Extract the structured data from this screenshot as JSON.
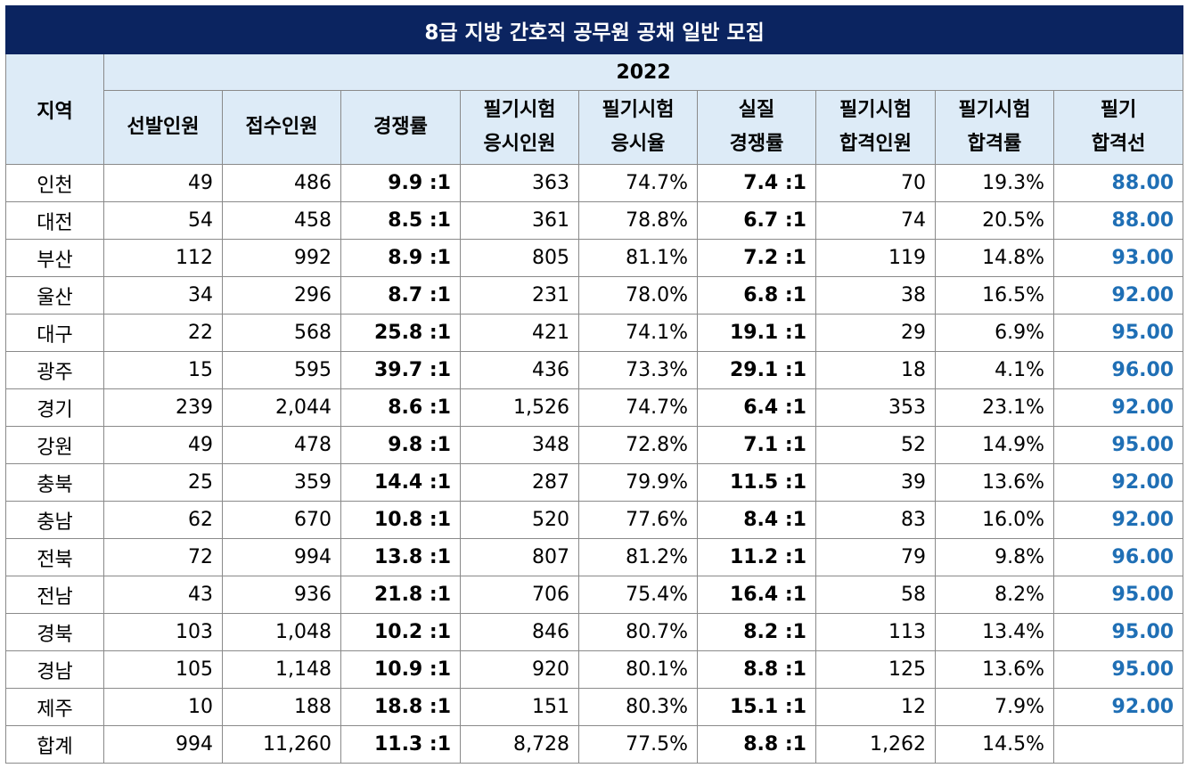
{
  "title": "8급 지방 간호직 공무원 공채 일반 모집",
  "region_header": "지역",
  "year": "2022",
  "columns": [
    "선발인원",
    "접수인원",
    "경쟁률",
    "필기시험\n응시인원",
    "필기시험\n응시율",
    "실질\n경쟁률",
    "필기시험\n합격인원",
    "필기시험\n합격률",
    "필기\n합격선"
  ],
  "rows": [
    {
      "region": "인천",
      "cells": [
        "49",
        "486",
        "9.9 :1",
        "363",
        "74.7%",
        "7.4 :1",
        "70",
        "19.3%",
        "88.00"
      ]
    },
    {
      "region": "대전",
      "cells": [
        "54",
        "458",
        "8.5 :1",
        "361",
        "78.8%",
        "6.7 :1",
        "74",
        "20.5%",
        "88.00"
      ]
    },
    {
      "region": "부산",
      "cells": [
        "112",
        "992",
        "8.9 :1",
        "805",
        "81.1%",
        "7.2 :1",
        "119",
        "14.8%",
        "93.00"
      ]
    },
    {
      "region": "울산",
      "cells": [
        "34",
        "296",
        "8.7 :1",
        "231",
        "78.0%",
        "6.8 :1",
        "38",
        "16.5%",
        "92.00"
      ]
    },
    {
      "region": "대구",
      "cells": [
        "22",
        "568",
        "25.8 :1",
        "421",
        "74.1%",
        "19.1 :1",
        "29",
        "6.9%",
        "95.00"
      ]
    },
    {
      "region": "광주",
      "cells": [
        "15",
        "595",
        "39.7 :1",
        "436",
        "73.3%",
        "29.1 :1",
        "18",
        "4.1%",
        "96.00"
      ]
    },
    {
      "region": "경기",
      "cells": [
        "239",
        "2,044",
        "8.6 :1",
        "1,526",
        "74.7%",
        "6.4 :1",
        "353",
        "23.1%",
        "92.00"
      ]
    },
    {
      "region": "강원",
      "cells": [
        "49",
        "478",
        "9.8 :1",
        "348",
        "72.8%",
        "7.1 :1",
        "52",
        "14.9%",
        "95.00"
      ]
    },
    {
      "region": "충북",
      "cells": [
        "25",
        "359",
        "14.4 :1",
        "287",
        "79.9%",
        "11.5 :1",
        "39",
        "13.6%",
        "92.00"
      ]
    },
    {
      "region": "충남",
      "cells": [
        "62",
        "670",
        "10.8 :1",
        "520",
        "77.6%",
        "8.4 :1",
        "83",
        "16.0%",
        "92.00"
      ]
    },
    {
      "region": "전북",
      "cells": [
        "72",
        "994",
        "13.8 :1",
        "807",
        "81.2%",
        "11.2 :1",
        "79",
        "9.8%",
        "96.00"
      ]
    },
    {
      "region": "전남",
      "cells": [
        "43",
        "936",
        "21.8 :1",
        "706",
        "75.4%",
        "16.4 :1",
        "58",
        "8.2%",
        "95.00"
      ]
    },
    {
      "region": "경북",
      "cells": [
        "103",
        "1,048",
        "10.2 :1",
        "846",
        "80.7%",
        "8.2 :1",
        "113",
        "13.4%",
        "95.00"
      ]
    },
    {
      "region": "경남",
      "cells": [
        "105",
        "1,148",
        "10.9 :1",
        "920",
        "80.1%",
        "8.8 :1",
        "125",
        "13.6%",
        "95.00"
      ]
    },
    {
      "region": "제주",
      "cells": [
        "10",
        "188",
        "18.8 :1",
        "151",
        "80.3%",
        "15.1 :1",
        "12",
        "7.9%",
        "92.00"
      ]
    },
    {
      "region": "합계",
      "cells": [
        "994",
        "11,260",
        "11.3 :1",
        "8,728",
        "77.5%",
        "8.8 :1",
        "1,262",
        "14.5%",
        ""
      ]
    }
  ],
  "colors": {
    "title_bg": "#0b2460",
    "header_bg": "#ddebf7",
    "cutoff_text": "#1f6fb5"
  }
}
